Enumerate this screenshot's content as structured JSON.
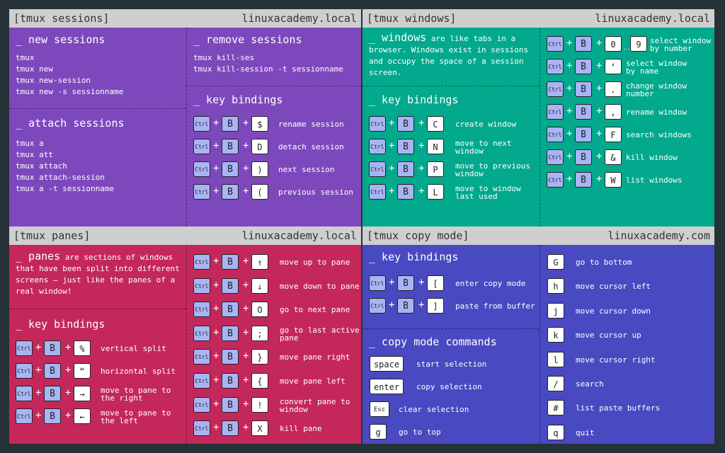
{
  "sessions": {
    "header": "[tmux sessions]",
    "domain": "linuxacademy.local",
    "new_title": "_ new sessions",
    "new_cmds": [
      "tmux",
      "tmux new",
      "tmux new-session",
      "tmux new -s sessionname"
    ],
    "attach_title": "_ attach sessions",
    "attach_cmds": [
      "tmux a",
      "tmux att",
      "tmux attach",
      "tmux attach-session",
      "tmux a -t sessionname"
    ],
    "remove_title": "_ remove sessions",
    "remove_cmds": [
      "tmux kill-ses",
      "tmux kill-session -t sessionname"
    ],
    "kb_title": "_ key bindings",
    "bindings": [
      {
        "key": "$",
        "desc": "rename session"
      },
      {
        "key": "D",
        "desc": "detach session"
      },
      {
        "key": ")",
        "desc": "next session"
      },
      {
        "key": "(",
        "desc": "previous session"
      }
    ]
  },
  "windows": {
    "header": "[tmux windows]",
    "domain": "linuxacademy.local",
    "intro_hl": "_ windows",
    "intro_text": " are like tabs in a browser. Windows exist in sessions and occupy the space of a session screen.",
    "kb_title": "_ key bindings",
    "bindings": [
      {
        "key": "C",
        "desc": [
          "create window"
        ]
      },
      {
        "key": "N",
        "desc": [
          "move to next",
          "window"
        ]
      },
      {
        "key": "P",
        "desc": [
          "move to previous",
          "window"
        ]
      },
      {
        "key": "L",
        "desc": [
          "move to window",
          "last used"
        ]
      }
    ],
    "select_key_start": "0",
    "select_key_end": "9",
    "select_dots": "..",
    "right_bindings": [
      {
        "key": "",
        "desc": [
          "select window",
          "by number"
        ]
      },
      {
        "key": "‘",
        "desc": [
          "select window",
          "by name"
        ]
      },
      {
        "key": ".",
        "desc": [
          "change window",
          "number"
        ]
      },
      {
        "key": ",",
        "desc": [
          "rename window"
        ]
      },
      {
        "key": "F",
        "desc": [
          "search windows"
        ]
      },
      {
        "key": "&",
        "desc": [
          "kill window"
        ]
      },
      {
        "key": "W",
        "desc": [
          "list windows"
        ]
      }
    ]
  },
  "panes": {
    "header": "[tmux panes]",
    "domain": "linuxacademy.local",
    "intro_hl": "_ panes",
    "intro_text": " are sections of windows that have been split into different screens – just like the panes of a real window!",
    "kb_title": "_ key bindings",
    "bindings": [
      {
        "key": "%",
        "desc": [
          "vertical split"
        ]
      },
      {
        "key": "“",
        "desc": [
          "horizontal split"
        ]
      },
      {
        "key": "→",
        "desc": [
          "move to pane to",
          "the right"
        ]
      },
      {
        "key": "←",
        "desc": [
          "move to pane to",
          "the left"
        ]
      }
    ],
    "right_bindings": [
      {
        "key": "↑",
        "desc": [
          "move up to pane"
        ]
      },
      {
        "key": "↓",
        "desc": [
          "move down to pane"
        ]
      },
      {
        "key": "O",
        "desc": [
          "go to next pane"
        ]
      },
      {
        "key": ";",
        "desc": [
          "go to last active",
          "pane"
        ]
      },
      {
        "key": "}",
        "desc": [
          "move pane right"
        ]
      },
      {
        "key": "{",
        "desc": [
          "move pane left"
        ]
      },
      {
        "key": "!",
        "desc": [
          "convert pane to",
          "window"
        ]
      },
      {
        "key": "X",
        "desc": [
          "kill pane"
        ]
      }
    ]
  },
  "copy": {
    "header": "[tmux copy mode]",
    "domain": "linuxacademy.com",
    "kb_title": "_ key bindings",
    "bindings": [
      {
        "key": "[",
        "desc": "enter copy mode"
      },
      {
        "key": "]",
        "desc": "paste from buffer"
      }
    ],
    "cmd_title": "_ copy mode commands",
    "commands": [
      {
        "key": "space",
        "desc": "start selection"
      },
      {
        "key": "enter",
        "desc": "copy selection"
      },
      {
        "key": "Esc",
        "desc": "clear selection"
      },
      {
        "key": "g",
        "desc": "go to top"
      }
    ],
    "right_commands": [
      {
        "key": "G",
        "desc": "go to bottom"
      },
      {
        "key": "h",
        "desc": "move cursor left"
      },
      {
        "key": "j",
        "desc": "move cursor down"
      },
      {
        "key": "k",
        "desc": "move cursor up"
      },
      {
        "key": "l",
        "desc": "move cursor right"
      },
      {
        "key": "/",
        "desc": "search"
      },
      {
        "key": "#",
        "desc": "list paste buffers"
      },
      {
        "key": "q",
        "desc": "quit"
      }
    ]
  },
  "labels": {
    "ctrl": "Ctrl",
    "b": "B",
    "plus": "+"
  },
  "colors": {
    "sessions": "#7e48bd",
    "windows": "#03a98c",
    "panes": "#c4285a",
    "copy": "#4949c1"
  }
}
